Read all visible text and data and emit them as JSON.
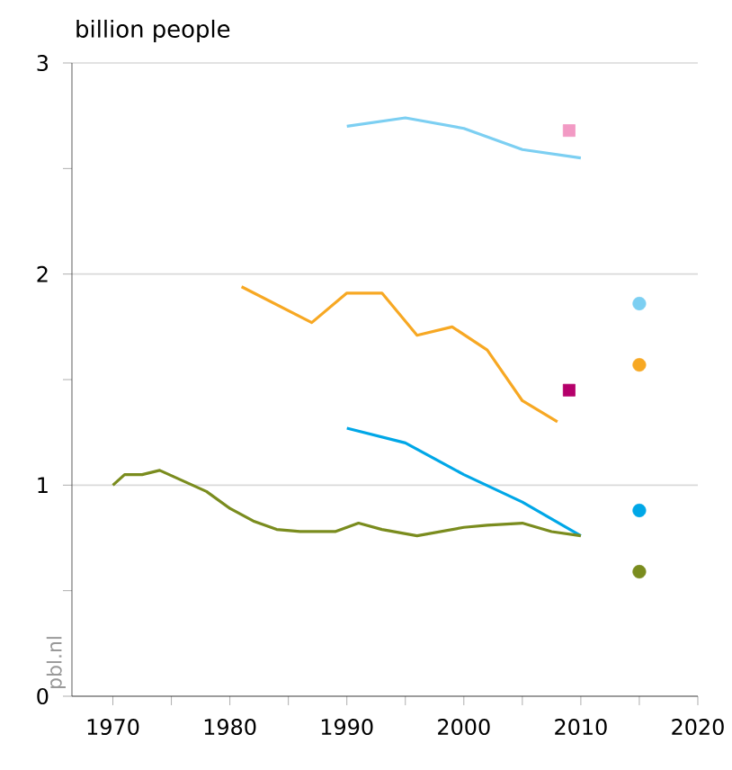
{
  "chart_data": {
    "type": "line",
    "ylabel": "billion people",
    "annotations": [
      "pbl.nl"
    ],
    "xlim": [
      1966.5,
      2020
    ],
    "ylim": [
      0,
      3
    ],
    "xticks": [
      1970,
      {
        "value": 1975,
        "label": null
      },
      1980,
      {
        "value": 1985,
        "label": null
      },
      1990,
      {
        "value": 1995,
        "label": null
      },
      2000,
      {
        "value": 2005,
        "label": null
      },
      2010,
      {
        "value": 2015,
        "label": null
      },
      2020
    ],
    "yticks": [
      0,
      {
        "value": 0.5,
        "label": null
      },
      1,
      {
        "value": 1.5,
        "label": null
      },
      2,
      {
        "value": 2.5,
        "label": null
      },
      3
    ],
    "grid": "y",
    "marker": "none",
    "line_style": "solid",
    "series": [
      {
        "color": "#7ccff2",
        "x": [
          1990,
          1995,
          2000,
          2005,
          2010
        ],
        "values": [
          2.7,
          2.74,
          2.69,
          2.59,
          2.55
        ]
      },
      {
        "color": "#f7a823",
        "x": [
          1981,
          1987,
          1990,
          1993,
          1996,
          1999,
          2002,
          2005,
          2008
        ],
        "values": [
          1.94,
          1.77,
          1.91,
          1.91,
          1.71,
          1.75,
          1.64,
          1.4,
          1.3
        ]
      },
      {
        "color": "#00a7e7",
        "x": [
          1990,
          1995,
          2000,
          2005,
          2010
        ],
        "values": [
          1.27,
          1.2,
          1.05,
          0.92,
          0.76
        ]
      },
      {
        "color": "#7a8c1e",
        "x": [
          1970,
          1971,
          1972.5,
          1974,
          1976,
          1978,
          1980,
          1982,
          1984,
          1986,
          1989,
          1991,
          1993,
          1996,
          2000,
          2002,
          2005,
          2007.5,
          2010
        ],
        "values": [
          1.0,
          1.05,
          1.05,
          1.07,
          1.02,
          0.97,
          0.89,
          0.83,
          0.79,
          0.78,
          0.78,
          0.82,
          0.79,
          0.76,
          0.8,
          0.81,
          0.82,
          0.78,
          0.76
        ]
      },
      {
        "type": "scatter",
        "marker": "square",
        "color": "#f29ac4",
        "x": [
          2009
        ],
        "values": [
          2.68
        ]
      },
      {
        "type": "scatter",
        "marker": "square",
        "color": "#b5006b",
        "x": [
          2009
        ],
        "values": [
          1.45
        ]
      },
      {
        "type": "scatter",
        "marker": "circle",
        "color": "#7ccff2",
        "x": [
          2015
        ],
        "values": [
          1.86
        ]
      },
      {
        "type": "scatter",
        "marker": "circle",
        "color": "#f7a823",
        "x": [
          2015
        ],
        "values": [
          1.57
        ]
      },
      {
        "type": "scatter",
        "marker": "circle",
        "color": "#00a7e7",
        "x": [
          2015
        ],
        "values": [
          0.88
        ]
      },
      {
        "type": "scatter",
        "marker": "circle",
        "color": "#7a8c1e",
        "x": [
          2015
        ],
        "values": [
          0.59
        ]
      }
    ]
  }
}
